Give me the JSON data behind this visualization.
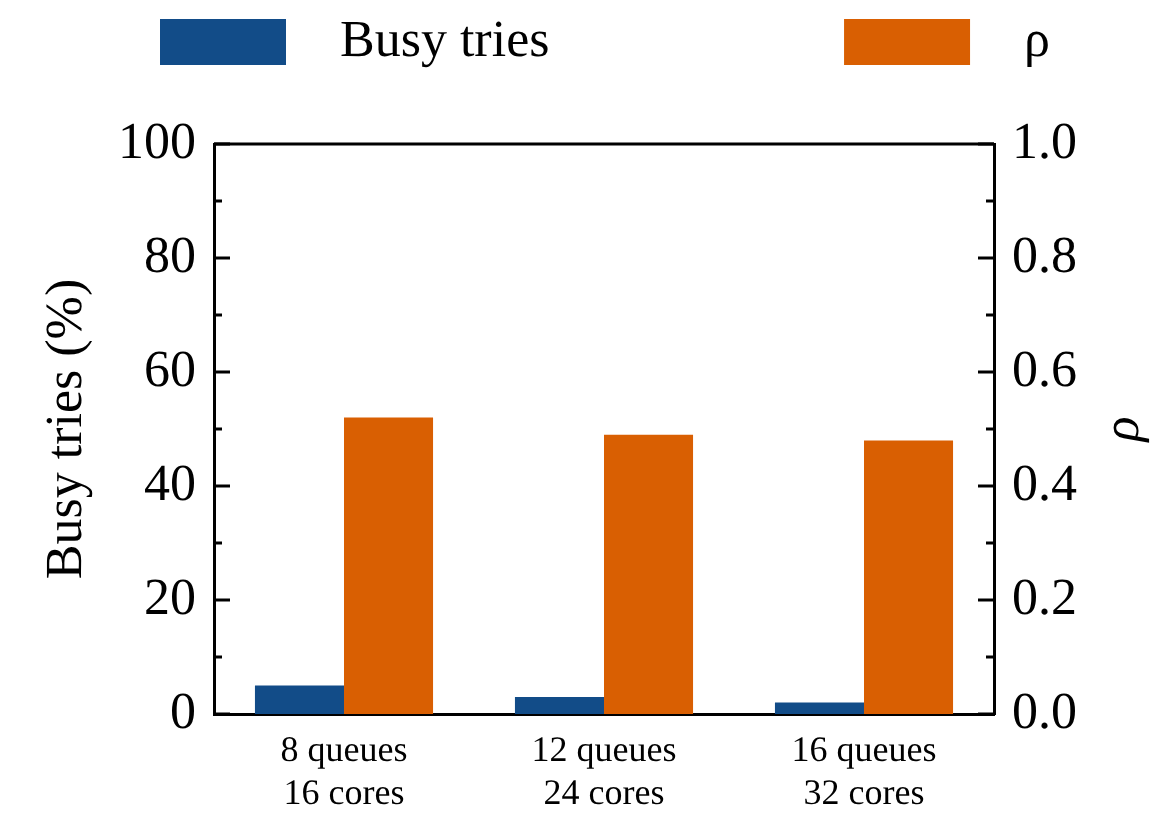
{
  "chart_data": {
    "type": "bar",
    "categories": [
      "8 queues\n16 cores",
      "12 queues\n24 cores",
      "16 queues\n32 cores"
    ],
    "series": [
      {
        "name": "Busy tries",
        "color": "#124c88",
        "values": [
          5,
          3,
          2
        ]
      },
      {
        "name": "ρ",
        "color": "#d95f02",
        "values": [
          0.52,
          0.49,
          0.48
        ],
        "axis": "y2"
      }
    ],
    "ylabel": "Busy tries (%)",
    "y2label": "ρ",
    "ylim": [
      0,
      100
    ],
    "yticks": [
      0,
      {
        "value": 10,
        "label": null
      },
      20,
      {
        "value": 30,
        "label": null
      },
      40,
      {
        "value": 50,
        "label": null
      },
      60,
      {
        "value": 70,
        "label": null
      },
      80,
      {
        "value": 90,
        "label": null
      },
      100
    ],
    "y2lim": [
      0,
      1
    ],
    "y2ticks": [
      {
        "value": 0,
        "label": "0.0"
      },
      {
        "value": 0.1,
        "label": null
      },
      {
        "value": 0.2,
        "label": "0.2"
      },
      {
        "value": 0.3,
        "label": null
      },
      {
        "value": 0.4,
        "label": "0.4"
      },
      {
        "value": 0.5,
        "label": null
      },
      {
        "value": 0.6,
        "label": "0.6"
      },
      {
        "value": 0.7,
        "label": null
      },
      {
        "value": 0.8,
        "label": "0.8"
      },
      {
        "value": 0.9,
        "label": null
      },
      {
        "value": 1,
        "label": "1.0"
      }
    ],
    "legend": "top",
    "grid": false
  }
}
